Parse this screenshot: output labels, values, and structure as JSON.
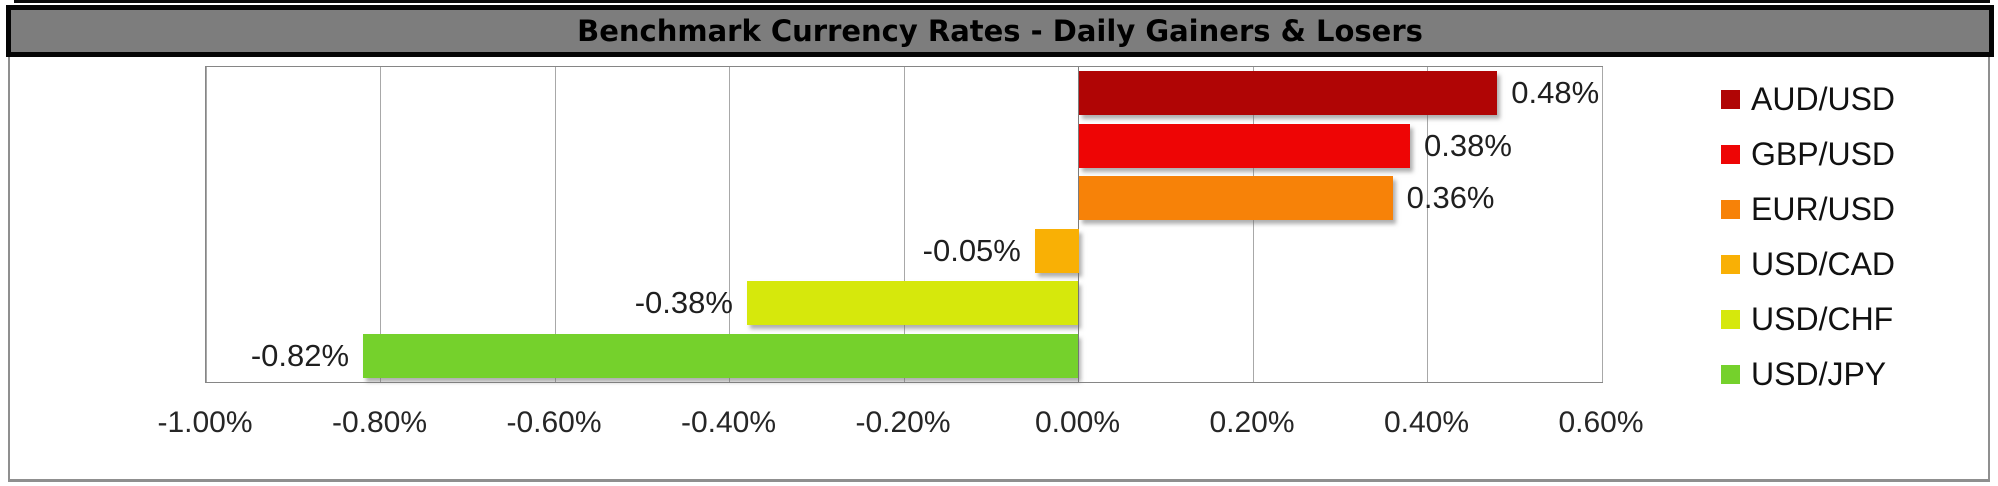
{
  "chart_data": {
    "type": "bar",
    "orientation": "horizontal",
    "title": "Benchmark Currency Rates - Daily Gainers & Losers",
    "categories": [
      "AUD/USD",
      "GBP/USD",
      "EUR/USD",
      "USD/CAD",
      "USD/CHF",
      "USD/JPY"
    ],
    "values": [
      0.48,
      0.38,
      0.36,
      -0.05,
      -0.38,
      -0.82
    ],
    "value_labels": [
      "0.48%",
      "0.38%",
      "0.36%",
      "-0.05%",
      "-0.38%",
      "-0.82%"
    ],
    "bar_colors": [
      "#B00505",
      "#EE0505",
      "#F78208",
      "#F9B005",
      "#D6E80C",
      "#75D12C"
    ],
    "xlim": [
      -1.0,
      0.6
    ],
    "x_tick_values": [
      -1.0,
      -0.8,
      -0.6,
      -0.4,
      -0.2,
      0.0,
      0.2,
      0.4,
      0.6
    ],
    "x_tick_labels": [
      "-1.00%",
      "-0.80%",
      "-0.60%",
      "-0.40%",
      "-0.20%",
      "0.00%",
      "0.20%",
      "0.40%",
      "0.60%"
    ],
    "grid": true,
    "legend_position": "right",
    "colors": {
      "title_bar_bg": "#7D7D7D",
      "title_bar_border": "#050505",
      "plot_border": "#868686",
      "gridline": "#A8A8A8"
    }
  }
}
